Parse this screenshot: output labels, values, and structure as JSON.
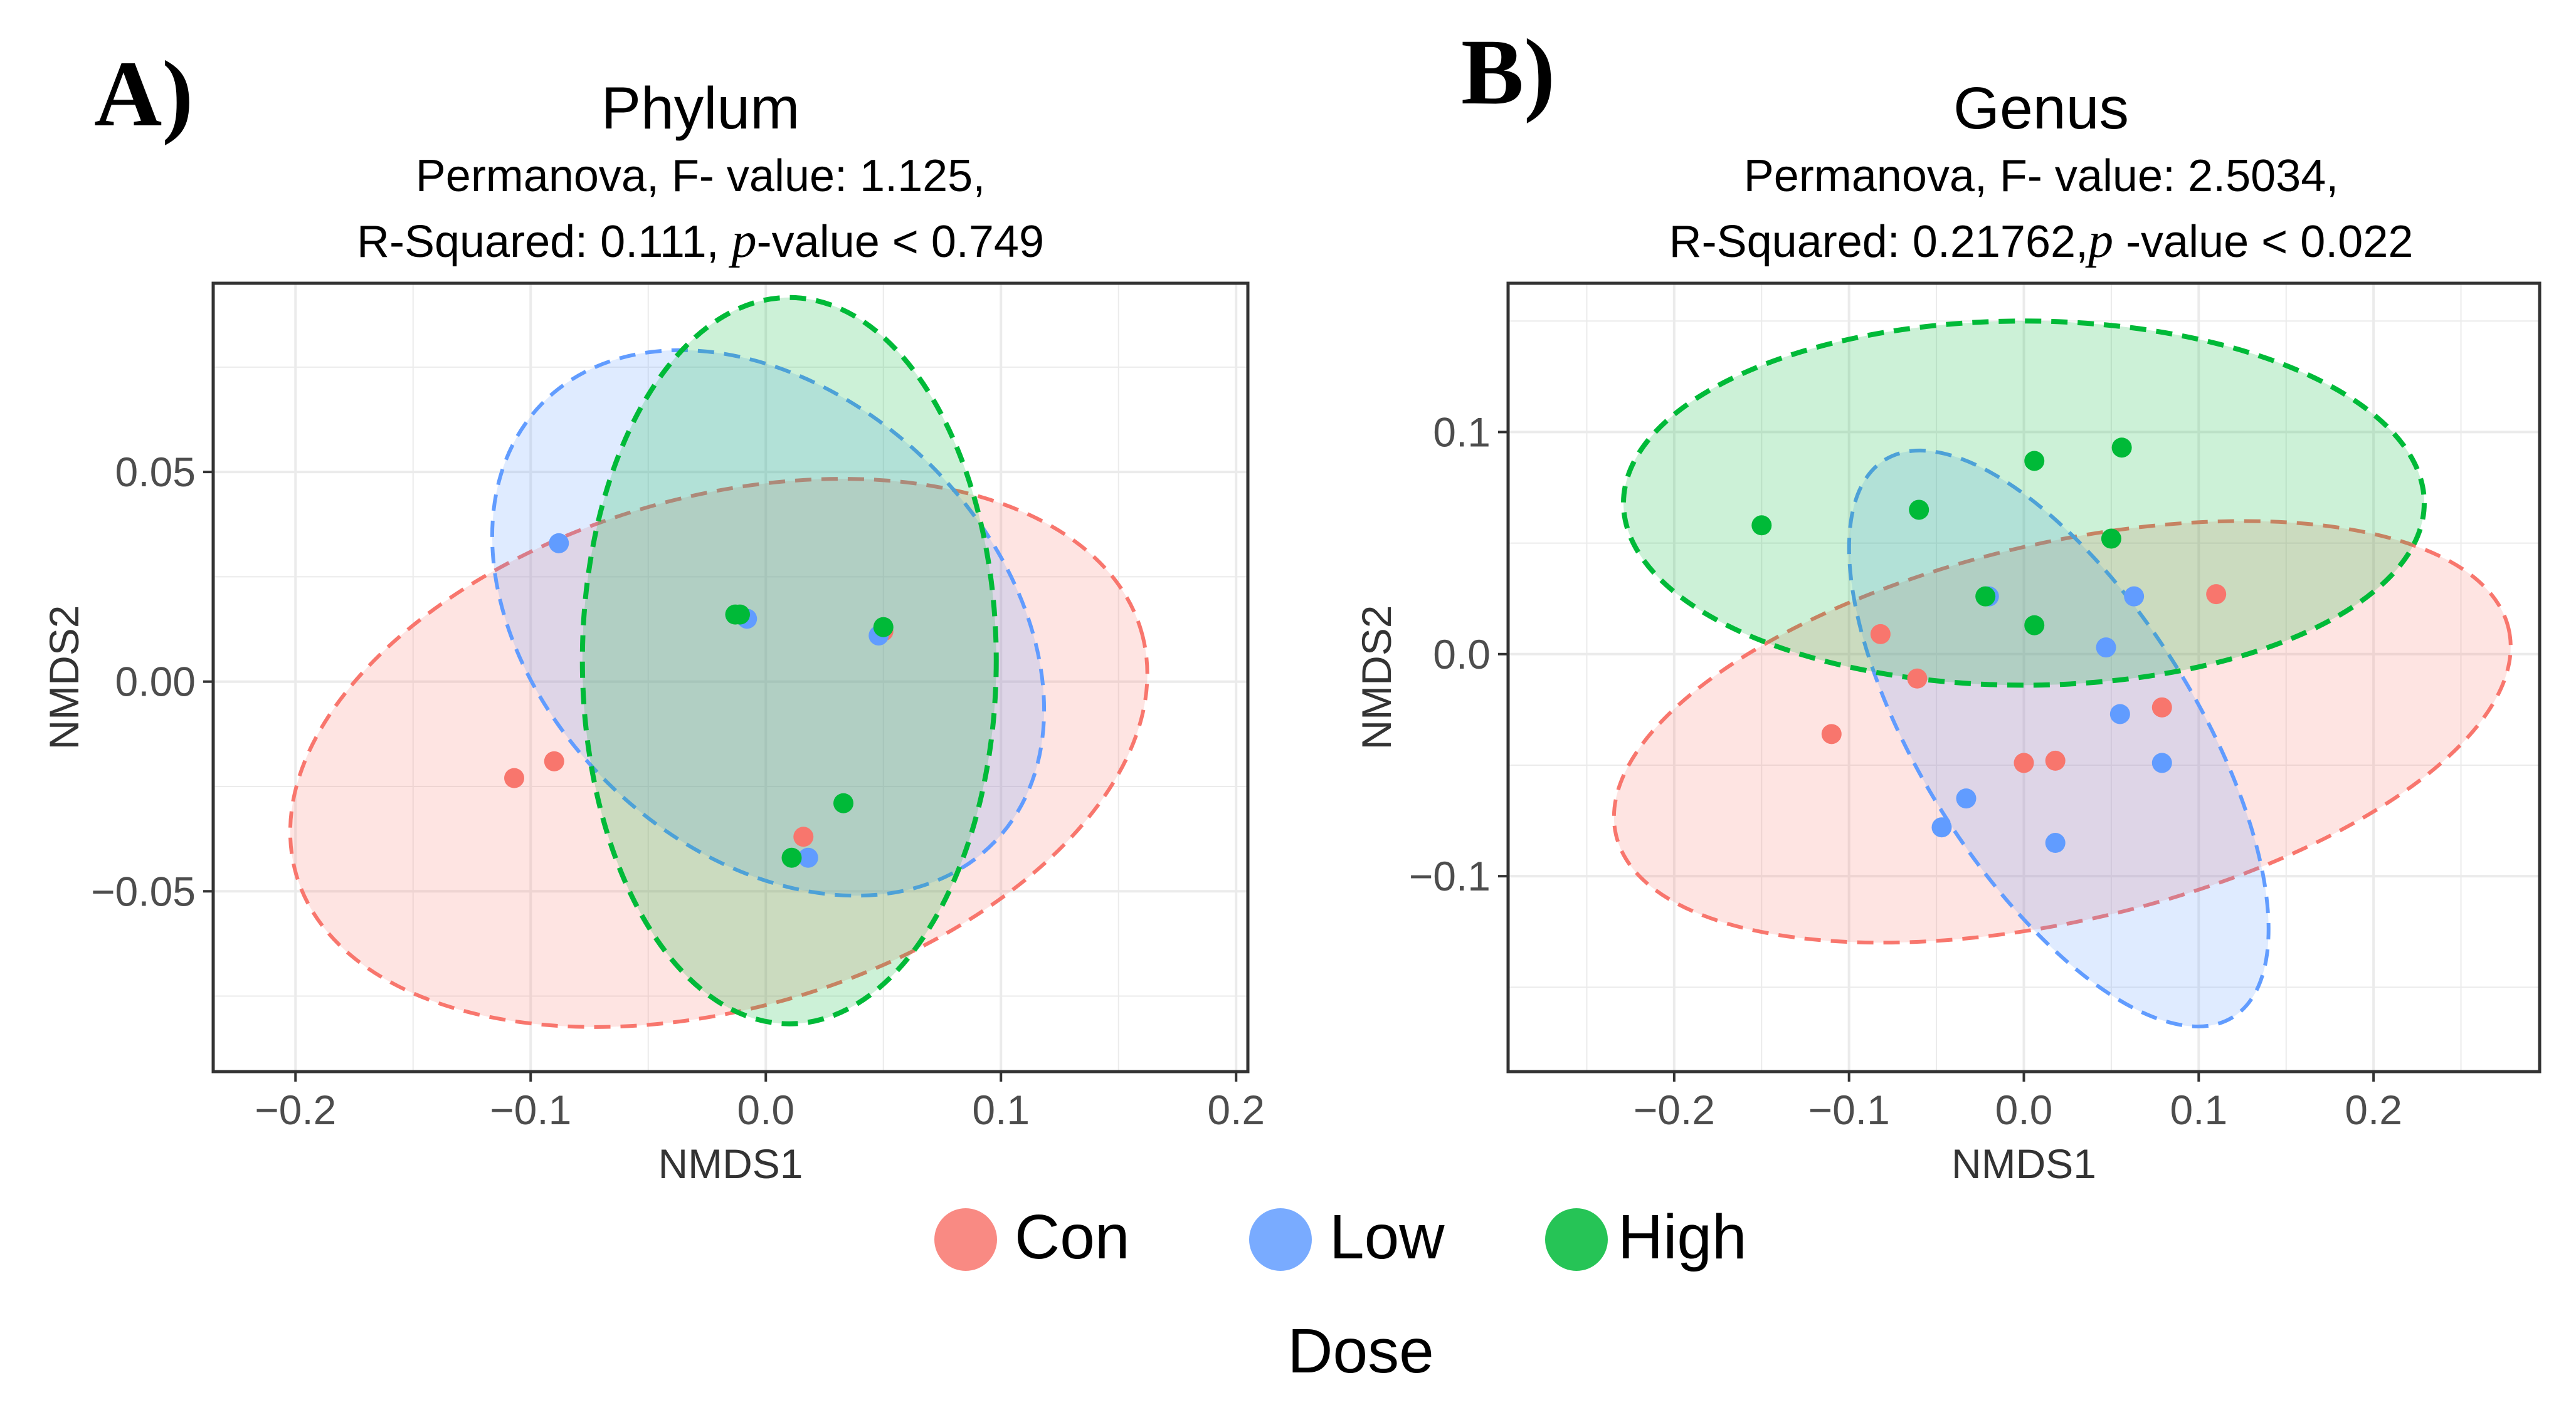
{
  "colors": {
    "con": "#F8766D",
    "low": "#619CFF",
    "high": "#00BA38",
    "grid": "#EBEBEB",
    "frame": "#333333"
  },
  "legend": {
    "title": "Dose",
    "items": [
      {
        "label": "Con",
        "color": "#F8766D"
      },
      {
        "label": "Low",
        "color": "#619CFF"
      },
      {
        "label": "High",
        "color": "#00BA38"
      }
    ]
  },
  "chart_data": [
    {
      "type": "scatter",
      "panel_label": "A)",
      "title": "Phylum",
      "subtitle_line1": "Permanova, F- value: 1.125,",
      "subtitle_line2_prefix": "R-Squared: 0.111, ",
      "subtitle_italic": "p",
      "subtitle_line2_suffix": "-value < 0.749",
      "xlabel": "NMDS1",
      "ylabel": "NMDS2",
      "xlim": [
        -0.235,
        0.205
      ],
      "ylim": [
        -0.093,
        0.095
      ],
      "xticks": [
        {
          "value": -0.2,
          "label": "−0.2"
        },
        {
          "value": -0.1,
          "label": "−0.1"
        },
        {
          "value": 0.0,
          "label": "0.0"
        },
        {
          "value": 0.1,
          "label": "0.1"
        },
        {
          "value": 0.2,
          "label": "0.2"
        }
      ],
      "yticks": [
        {
          "value": -0.05,
          "label": "−0.05"
        },
        {
          "value": 0.0,
          "label": "0.00"
        },
        {
          "value": 0.05,
          "label": "0.05"
        }
      ],
      "series": [
        {
          "name": "Con",
          "points": [
            [
              -0.107,
              -0.023
            ],
            [
              -0.09,
              -0.019
            ],
            [
              0.016,
              -0.037
            ],
            [
              0.05,
              0.012
            ]
          ]
        },
        {
          "name": "Low",
          "points": [
            [
              -0.088,
              0.033
            ],
            [
              -0.008,
              0.015
            ],
            [
              0.018,
              -0.042
            ],
            [
              0.048,
              0.011
            ]
          ]
        },
        {
          "name": "High",
          "points": [
            [
              -0.013,
              0.016
            ],
            [
              -0.011,
              0.016
            ],
            [
              0.011,
              -0.042
            ],
            [
              0.033,
              -0.029
            ],
            [
              0.05,
              0.013
            ]
          ]
        }
      ],
      "ellipses": [
        {
          "series": "Con",
          "cx": -0.02,
          "cy": -0.017,
          "rx": 0.187,
          "ry": 0.061,
          "angle_deg": 16
        },
        {
          "series": "Low",
          "cx": 0.001,
          "cy": 0.014,
          "rx": 0.134,
          "ry": 0.054,
          "angle_deg": -44
        },
        {
          "series": "High",
          "cx": 0.01,
          "cy": 0.005,
          "rx": 0.088,
          "ry": 0.0866,
          "angle_deg": 0
        }
      ]
    },
    {
      "type": "scatter",
      "panel_label": "B)",
      "title": "Genus",
      "subtitle_line1": "Permanova, F- value: 2.5034,",
      "subtitle_line2_prefix": "R-Squared: 0.21762,",
      "subtitle_italic": "p",
      "subtitle_line2_suffix": " -value < 0.022",
      "xlabel": "NMDS1",
      "ylabel": "NMDS2",
      "xlim": [
        -0.295,
        0.295
      ],
      "ylim": [
        -0.188,
        0.167
      ],
      "xticks": [
        {
          "value": -0.2,
          "label": "−0.2"
        },
        {
          "value": -0.1,
          "label": "−0.1"
        },
        {
          "value": 0.0,
          "label": "0.0"
        },
        {
          "value": 0.1,
          "label": "0.1"
        },
        {
          "value": 0.2,
          "label": "0.2"
        }
      ],
      "yticks": [
        {
          "value": -0.1,
          "label": "−0.1"
        },
        {
          "value": 0.0,
          "label": "0.0"
        },
        {
          "value": 0.1,
          "label": "0.1"
        }
      ],
      "series": [
        {
          "name": "Con",
          "points": [
            [
              -0.11,
              -0.036
            ],
            [
              -0.082,
              0.009
            ],
            [
              -0.061,
              -0.011
            ],
            [
              0.0,
              -0.049
            ],
            [
              0.018,
              -0.048
            ],
            [
              0.079,
              -0.024
            ],
            [
              0.11,
              0.027
            ]
          ]
        },
        {
          "name": "Low",
          "points": [
            [
              -0.047,
              -0.078
            ],
            [
              -0.033,
              -0.065
            ],
            [
              -0.02,
              0.026
            ],
            [
              0.018,
              -0.085
            ],
            [
              0.047,
              0.003
            ],
            [
              0.055,
              -0.027
            ],
            [
              0.063,
              0.026
            ],
            [
              0.079,
              -0.049
            ]
          ]
        },
        {
          "name": "High",
          "points": [
            [
              -0.15,
              0.058
            ],
            [
              -0.06,
              0.065
            ],
            [
              -0.022,
              0.026
            ],
            [
              0.006,
              0.087
            ],
            [
              0.006,
              0.013
            ],
            [
              0.05,
              0.052
            ],
            [
              0.056,
              0.093
            ]
          ]
        }
      ],
      "ellipses": [
        {
          "series": "Con",
          "cx": 0.022,
          "cy": -0.035,
          "rx": 0.262,
          "ry": 0.085,
          "angle_deg": 13
        },
        {
          "series": "Low",
          "cx": 0.02,
          "cy": -0.038,
          "rx": 0.188,
          "ry": 0.062,
          "angle_deg": -58
        },
        {
          "series": "High",
          "cx": 0.0,
          "cy": 0.068,
          "rx": 0.229,
          "ry": 0.082,
          "angle_deg": 0
        }
      ]
    }
  ]
}
